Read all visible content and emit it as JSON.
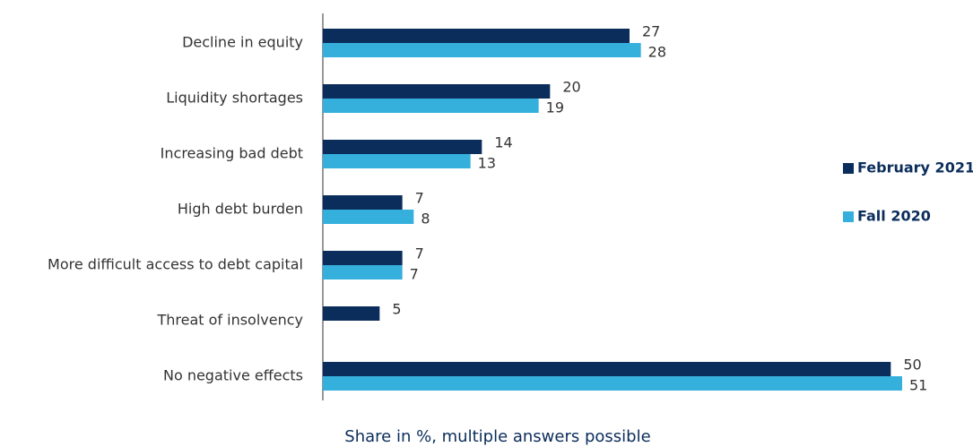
{
  "chart_data": {
    "type": "hbar",
    "categories": [
      "Decline in equity",
      "Liquidity shortages",
      "Increasing bad debt",
      "High debt burden",
      "More difficult access to debt capital",
      "Threat of insolvency",
      "No negative effects"
    ],
    "series": [
      {
        "name": "February 2021",
        "color": "#0b2d5b",
        "values": [
          27,
          20,
          14,
          7,
          7,
          5,
          50
        ]
      },
      {
        "name": "Fall 2020",
        "color": "#35b0dd",
        "values": [
          28,
          19,
          13,
          8,
          7,
          null,
          51
        ]
      }
    ],
    "xlim": [
      0,
      57
    ],
    "x_label": "Share in %, multiple answers possible",
    "legend": "right"
  }
}
